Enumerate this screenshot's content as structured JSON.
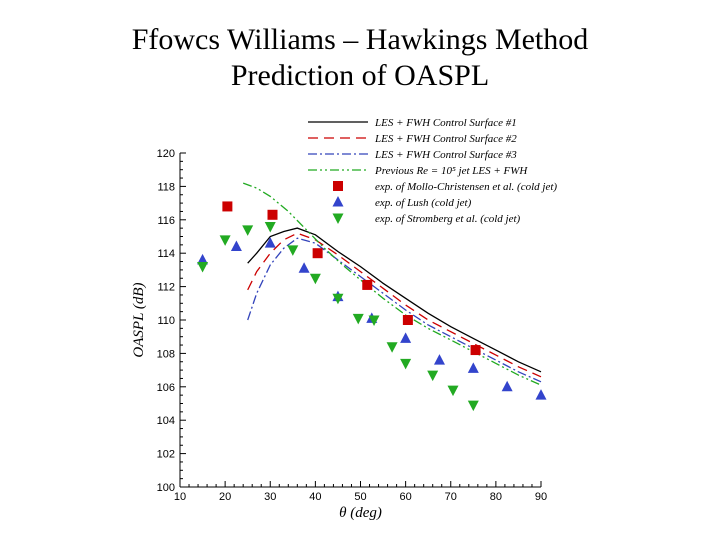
{
  "title_line1": "Ffowcs Williams – Hawkings Method",
  "title_line2": "Prediction of OASPL",
  "chart_data": {
    "type": "line",
    "xlabel": "θ (deg)",
    "ylabel": "OASPL (dB)",
    "xlim": [
      10,
      90
    ],
    "ylim": [
      100,
      120
    ],
    "xticks": [
      10,
      20,
      30,
      40,
      50,
      60,
      70,
      80,
      90
    ],
    "yticks": [
      100,
      102,
      104,
      106,
      108,
      110,
      112,
      114,
      116,
      118,
      120
    ],
    "grid": false,
    "legend_position": "top-right",
    "series": [
      {
        "name": "LES + FWH Control Surface #1",
        "kind": "line",
        "color": "#000000",
        "dash": "solid",
        "x": [
          25,
          27,
          30,
          33,
          36,
          40,
          45,
          50,
          55,
          60,
          65,
          70,
          75,
          80,
          85,
          90
        ],
        "y": [
          113.4,
          114.0,
          115.0,
          115.3,
          115.5,
          115.1,
          114.1,
          113.2,
          112.2,
          111.3,
          110.4,
          109.6,
          108.9,
          108.2,
          107.5,
          106.9
        ]
      },
      {
        "name": "LES + FWH Control Surface #2",
        "kind": "line",
        "color": "#cc0000",
        "dash": "10,6",
        "x": [
          25,
          27,
          30,
          33,
          36,
          40,
          45,
          50,
          55,
          60,
          65,
          70,
          75,
          80,
          85,
          90
        ],
        "y": [
          111.8,
          112.9,
          114.0,
          114.8,
          115.2,
          114.8,
          113.9,
          112.9,
          111.9,
          110.9,
          110.0,
          109.3,
          108.6,
          107.9,
          107.2,
          106.6
        ]
      },
      {
        "name": "LES + FWH Control Surface #3",
        "kind": "line",
        "color": "#3344bb",
        "dash": "9,3,2,3",
        "x": [
          25,
          27,
          30,
          33,
          36,
          40,
          45,
          50,
          55,
          60,
          65,
          70,
          75,
          80,
          85,
          90
        ],
        "y": [
          110.0,
          111.6,
          113.3,
          114.3,
          114.9,
          114.6,
          113.6,
          112.6,
          111.6,
          110.6,
          109.7,
          109.0,
          108.3,
          107.6,
          106.9,
          106.3
        ]
      },
      {
        "name": "Previous Re = 10⁵ jet LES + FWH",
        "kind": "line",
        "color": "#22aa22",
        "dash": "9,3,2,3,2,3",
        "x": [
          24,
          27,
          30,
          34,
          38,
          42,
          46,
          50,
          55,
          60,
          65,
          70,
          75,
          80,
          85,
          90
        ],
        "y": [
          118.2,
          117.9,
          117.4,
          116.5,
          115.4,
          114.3,
          113.3,
          112.4,
          111.3,
          110.3,
          109.5,
          108.8,
          108.1,
          107.4,
          106.7,
          106.1
        ]
      },
      {
        "name": "exp. of Mollo-Christensen et al. (cold jet)",
        "kind": "marker",
        "marker": "square",
        "color": "#cc0000",
        "x": [
          20.5,
          30.5,
          40.5,
          51.5,
          60.5,
          75.5
        ],
        "y": [
          116.8,
          116.3,
          114.0,
          112.1,
          110.0,
          108.2
        ]
      },
      {
        "name": "exp. of Lush (cold jet)",
        "kind": "marker",
        "marker": "triangle-up",
        "color": "#3344cc",
        "x": [
          15,
          22.5,
          30,
          37.5,
          45,
          52.5,
          60,
          67.5,
          75,
          82.5,
          90
        ],
        "y": [
          113.6,
          114.4,
          114.6,
          113.1,
          111.4,
          110.1,
          108.9,
          107.6,
          107.1,
          106.0,
          105.5
        ]
      },
      {
        "name": "exp. of Stromberg et al. (cold jet)",
        "kind": "marker",
        "marker": "triangle-down",
        "color": "#22aa22",
        "x": [
          15,
          20,
          25,
          30,
          35,
          40,
          45,
          49.5,
          53,
          57,
          60,
          66,
          70.5,
          75
        ],
        "y": [
          113.2,
          114.8,
          115.4,
          115.6,
          114.2,
          112.5,
          111.3,
          110.1,
          110.0,
          108.4,
          107.4,
          106.7,
          105.8,
          104.9
        ]
      }
    ]
  }
}
